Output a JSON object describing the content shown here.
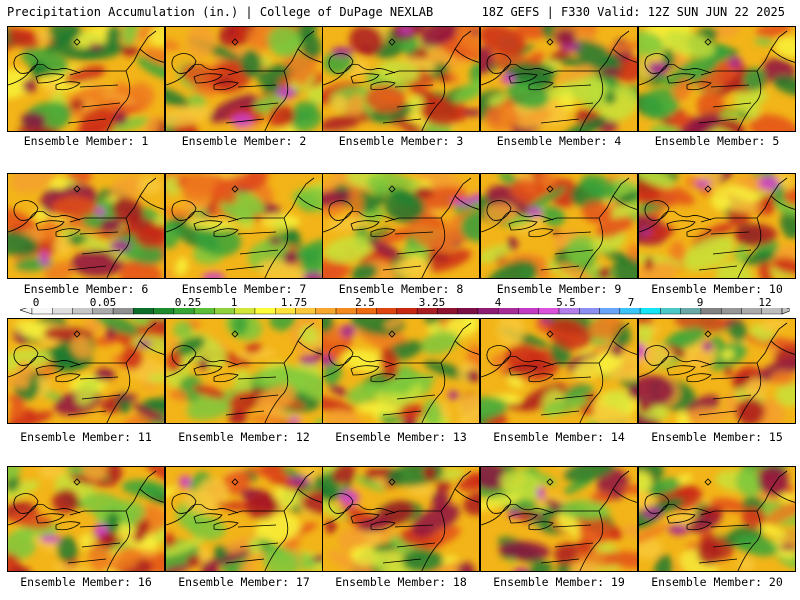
{
  "header": {
    "left": "Precipitation Accumulation (in.) | College of DuPage NEXLAB",
    "right": "18Z GEFS | F330 Valid: 12Z SUN JUN 22 2025"
  },
  "colorbar": {
    "labels": [
      "0",
      "0.05",
      "0.25",
      "1",
      "1.75",
      "2.5",
      "3.25",
      "4",
      "5.5",
      "7",
      "9",
      "12"
    ],
    "colors": [
      "#f6f6f6",
      "#dedede",
      "#c6c6c6",
      "#aaaaaa",
      "#909090",
      "#0d6e2a",
      "#1d8a2e",
      "#37a437",
      "#5dbe3a",
      "#90d23e",
      "#d2e63a",
      "#fcfc3a",
      "#fce23a",
      "#fcc83a",
      "#f8a72e",
      "#f38a1e",
      "#ec6a12",
      "#dd4410",
      "#c82812",
      "#a81e22",
      "#8c1230",
      "#7c0e46",
      "#8e1c76",
      "#a82c96",
      "#c43ac4",
      "#da52dc",
      "#b27ee8",
      "#8c8ef2",
      "#6aa4f8",
      "#3ac4fa",
      "#14e4f4",
      "#4ac8c8",
      "#6aa8a6",
      "#828282",
      "#969696",
      "#aaaaaa",
      "#bebebe"
    ]
  },
  "members": [
    {
      "label": "Ensemble Member: 1"
    },
    {
      "label": "Ensemble Member: 2"
    },
    {
      "label": "Ensemble Member: 3"
    },
    {
      "label": "Ensemble Member: 4"
    },
    {
      "label": "Ensemble Member: 5"
    },
    {
      "label": "Ensemble Member: 6"
    },
    {
      "label": "Ensemble Member: 7"
    },
    {
      "label": "Ensemble Member: 8"
    },
    {
      "label": "Ensemble Member: 9"
    },
    {
      "label": "Ensemble Member: 10"
    },
    {
      "label": "Ensemble Member: 11"
    },
    {
      "label": "Ensemble Member: 12"
    },
    {
      "label": "Ensemble Member: 13"
    },
    {
      "label": "Ensemble Member: 14"
    },
    {
      "label": "Ensemble Member: 15"
    },
    {
      "label": "Ensemble Member: 16"
    },
    {
      "label": "Ensemble Member: 17"
    },
    {
      "label": "Ensemble Member: 18"
    },
    {
      "label": "Ensemble Member: 19"
    },
    {
      "label": "Ensemble Member: 20"
    }
  ]
}
